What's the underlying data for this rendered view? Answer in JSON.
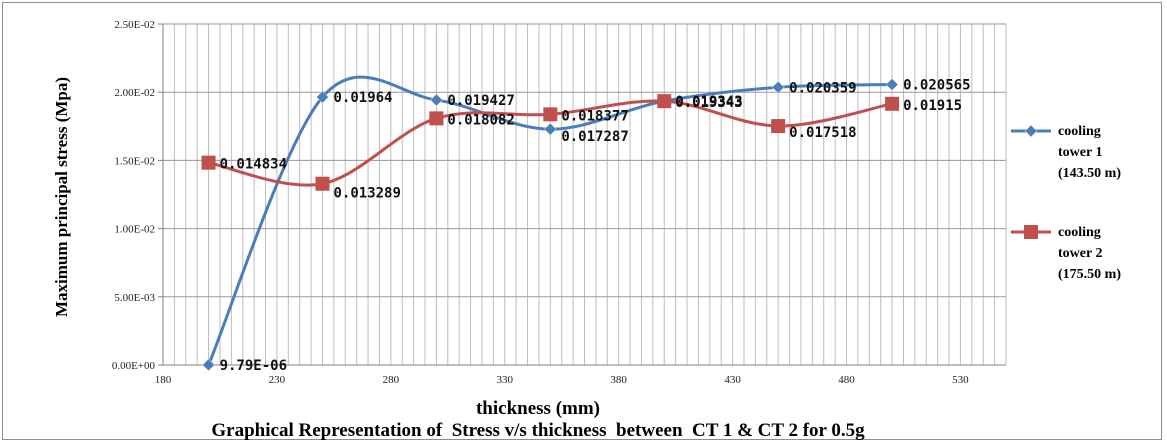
{
  "chart_data": {
    "type": "line",
    "title": "Graphical Representation of  Stress v/s thickness  between  CT 1 & CT 2 for 0.5g",
    "xlabel": "thickness (mm)",
    "ylabel": "Maximum principal stress (Mpa)",
    "xlim": [
      180,
      550
    ],
    "ylim": [
      0,
      0.025
    ],
    "xticks": [
      180,
      230,
      280,
      330,
      380,
      430,
      480,
      530
    ],
    "xtick_labels": [
      "180",
      "230",
      "280",
      "330",
      "380",
      "430",
      "480",
      "530"
    ],
    "yticks": [
      0,
      0.005,
      0.01,
      0.015,
      0.02,
      0.025
    ],
    "ytick_labels": [
      "0.00E+00",
      "5.00E-03",
      "1.00E-02",
      "1.50E-02",
      "2.00E-02",
      "2.50E-02"
    ],
    "grid": true,
    "legend_position": "right",
    "x": [
      200,
      250,
      300,
      350,
      400,
      450,
      500
    ],
    "series": [
      {
        "name": "cooling tower 1 (143.50 m)",
        "name_lines": [
          "cooling",
          "tower 1",
          "(143.50 m)"
        ],
        "marker": "diamond",
        "color": "#4a7ebb",
        "values": [
          9.79e-06,
          0.01964,
          0.019427,
          0.017287,
          0.019343,
          0.020359,
          0.020565
        ],
        "labels": [
          "9.79E-06",
          "0.01964",
          "0.019427",
          "0.017287",
          "0.019343",
          "0.020359",
          "0.020565"
        ]
      },
      {
        "name": "cooling tower 2 (175.50 m)",
        "name_lines": [
          "cooling",
          "tower 2",
          "(175.50 m)"
        ],
        "marker": "square",
        "color": "#c0504d",
        "values": [
          0.014834,
          0.013289,
          0.018082,
          0.018377,
          0.019343,
          0.017518,
          0.01915
        ],
        "labels": [
          "0.014834",
          "0.013289",
          "0.018082",
          "0.018377",
          "0.019343",
          "0.017518",
          "0.01915"
        ]
      }
    ]
  }
}
